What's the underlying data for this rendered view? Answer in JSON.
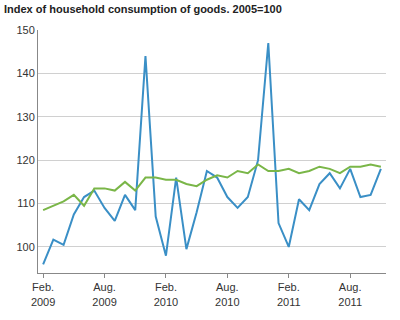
{
  "chart_data": {
    "type": "line",
    "title": "Index of household consumption of goods. 2005=100",
    "categories": [
      "Feb.\n2009",
      null,
      null,
      null,
      null,
      null,
      "Aug.\n2009",
      null,
      null,
      null,
      null,
      null,
      "Feb.\n2010",
      null,
      null,
      null,
      null,
      null,
      "Aug.\n2010",
      null,
      null,
      null,
      null,
      null,
      "Feb.\n2011",
      null,
      null,
      null,
      null,
      null,
      "Aug.\n2011",
      null,
      null,
      null
    ],
    "series": [
      {
        "color": "#3a8fc6",
        "values": [
          96,
          101.7,
          100.5,
          107.5,
          111.5,
          113,
          109,
          106,
          112,
          108.5,
          144,
          107,
          98,
          116,
          99.5,
          108,
          117.5,
          116,
          111.5,
          109,
          111.5,
          120,
          147,
          105.5,
          100,
          111,
          108.5,
          114.5,
          117,
          113.5,
          118,
          111.5,
          112,
          118
        ]
      },
      {
        "color": "#7ab648",
        "values": [
          108.5,
          109.5,
          110.5,
          112,
          109.5,
          113.5,
          113.5,
          113,
          115,
          113,
          116,
          116,
          115.5,
          115.5,
          114.5,
          114,
          115.5,
          116.5,
          116,
          117.5,
          117,
          119,
          117.5,
          117.5,
          118,
          117,
          117.5,
          118.5,
          118,
          117,
          118.5,
          118.5,
          119,
          118.5
        ]
      }
    ],
    "ylim": [
      94,
      150
    ],
    "yticks": [
      100,
      110,
      120,
      130,
      140,
      150
    ],
    "grid": true
  }
}
